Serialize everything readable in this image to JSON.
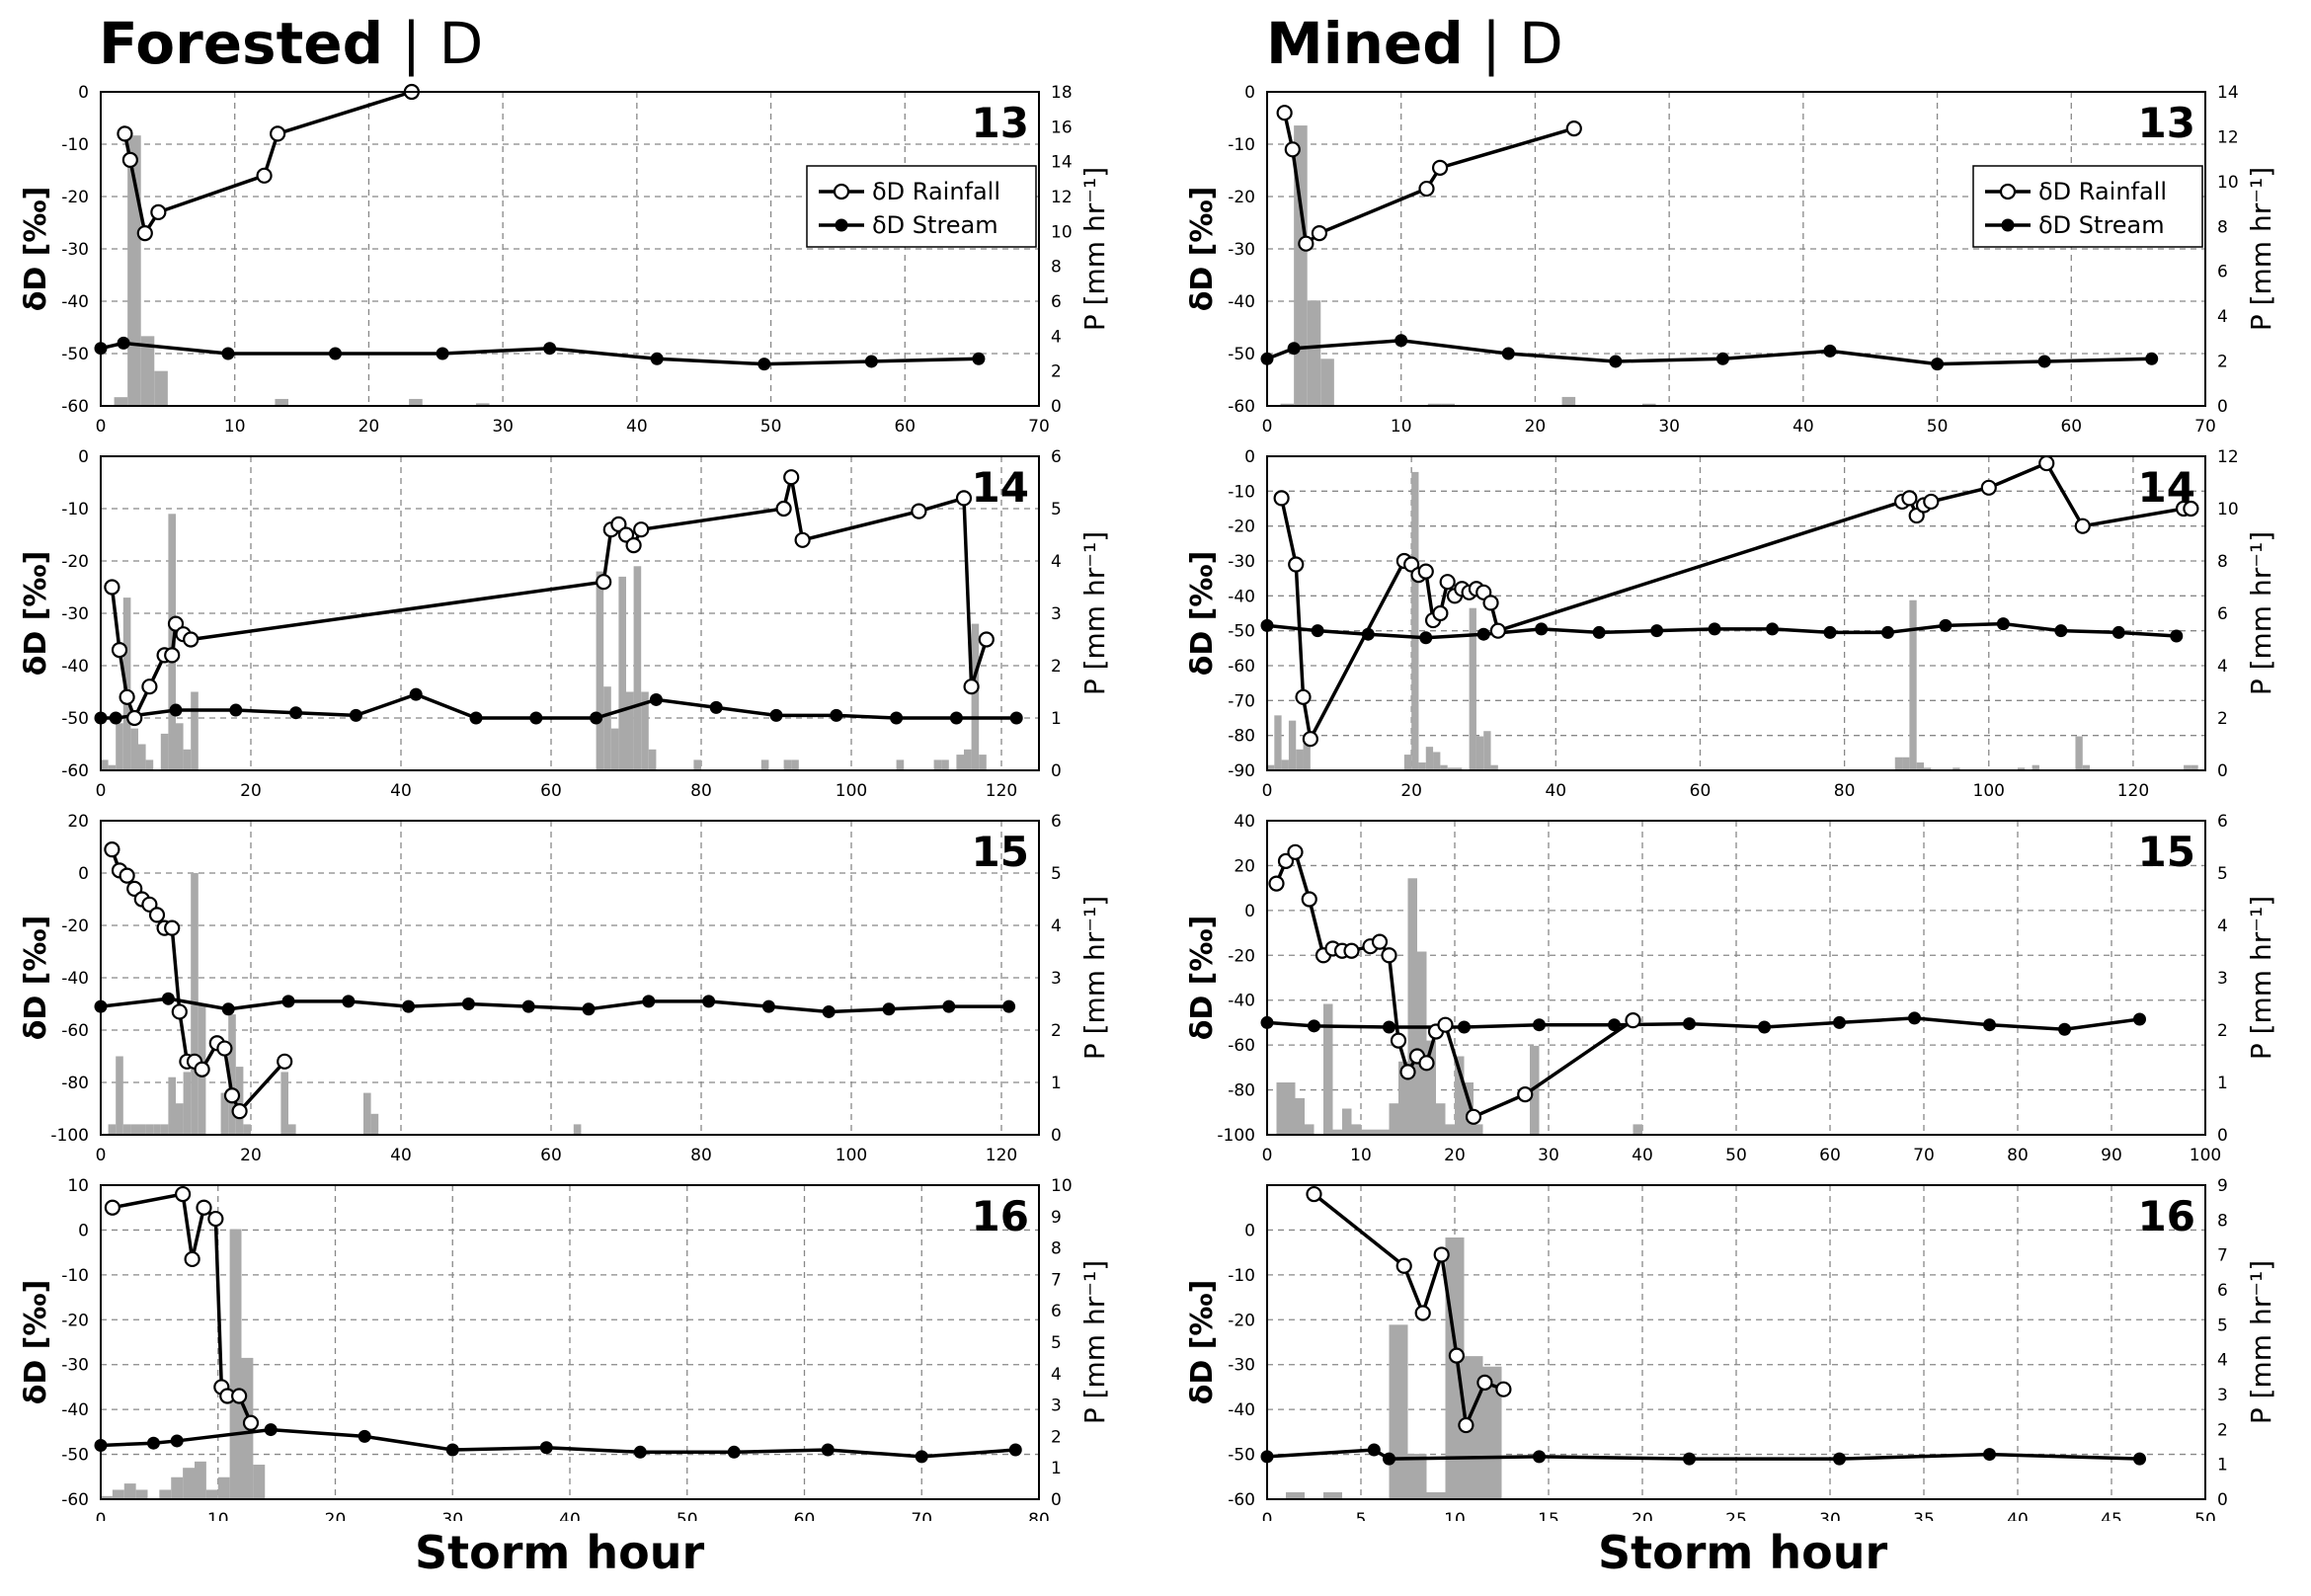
{
  "figure": {
    "columns": [
      {
        "title": "Forested",
        "separator": "|",
        "suffix": "D"
      },
      {
        "title": "Mined",
        "separator": "|",
        "suffix": "D"
      }
    ],
    "xlabel": "Storm hour"
  },
  "colors": {
    "rain_bar": "#a9a9a9",
    "line": "#000000",
    "grid": "#888888",
    "open_marker_fill": "#ffffff"
  },
  "chart_data": [
    {
      "panel": "13",
      "column": "Forested",
      "type": "line+bar",
      "xlim": [
        0,
        70
      ],
      "xticks": [
        0,
        10,
        20,
        30,
        40,
        50,
        60,
        70
      ],
      "ylim": [
        -60,
        0
      ],
      "yticks": [
        -60,
        -50,
        -40,
        -30,
        -20,
        -10,
        0
      ],
      "y2lim": [
        0,
        18
      ],
      "y2ticks": [
        0,
        2,
        4,
        6,
        8,
        10,
        12,
        14,
        16,
        18
      ],
      "ylabel": "δD [‰]",
      "y2label": "P [mm hr⁻¹]",
      "legend": {
        "rainfall": "δD Rainfall",
        "stream": "δD Stream"
      },
      "rainfall_dD": {
        "x": [
          1.8,
          2.2,
          3.3,
          4.3,
          12.2,
          13.2,
          23.2
        ],
        "y": [
          -8,
          -13,
          -27,
          -23,
          -16,
          -8,
          0
        ]
      },
      "stream_dD": {
        "x": [
          0,
          1.7,
          9.5,
          17.5,
          25.5,
          33.5,
          41.5,
          49.5,
          57.5,
          65.5
        ],
        "y": [
          -49,
          -48,
          -50,
          -50,
          -50,
          -49,
          -51,
          -52,
          -51.5,
          -51
        ]
      },
      "precip": {
        "x": [
          1.5,
          2.5,
          3.5,
          4.5,
          13.5,
          23.5,
          28.5
        ],
        "y": [
          0.5,
          15.5,
          4,
          2,
          0.4,
          0.4,
          0.15
        ]
      }
    },
    {
      "panel": "14",
      "column": "Forested",
      "type": "line+bar",
      "xlim": [
        0,
        125
      ],
      "xticks": [
        0,
        20,
        40,
        60,
        80,
        100,
        120
      ],
      "ylim": [
        -60,
        0
      ],
      "yticks": [
        -60,
        -50,
        -40,
        -30,
        -20,
        -10,
        0
      ],
      "y2lim": [
        0,
        6
      ],
      "y2ticks": [
        0,
        1,
        2,
        3,
        4,
        5,
        6
      ],
      "ylabel": "δD [‰]",
      "y2label": "P [mm hr⁻¹]",
      "rainfall_dD": {
        "x": [
          1.5,
          2.5,
          3.5,
          4.5,
          6.5,
          8.5,
          9.5,
          10,
          11,
          12,
          67,
          68,
          69,
          70,
          71,
          72,
          91,
          92,
          93.5,
          109,
          115,
          116,
          118
        ],
        "y": [
          -25,
          -37,
          -46,
          -50,
          -44,
          -38,
          -38,
          -32,
          -34,
          -35,
          -24,
          -14,
          -13,
          -15,
          -17,
          -14,
          -10,
          -4,
          -16,
          -10.5,
          -8,
          -44,
          -35
        ]
      },
      "stream_dD": {
        "x": [
          0,
          2,
          10,
          18,
          26,
          34,
          42,
          50,
          58,
          66,
          74,
          82,
          90,
          98,
          106,
          114,
          122
        ],
        "y": [
          -50,
          -50,
          -48.5,
          -48.5,
          -49,
          -49.5,
          -45.5,
          -50,
          -50,
          -50,
          -46.5,
          -48,
          -49.5,
          -49.5,
          -50,
          -50,
          -50
        ]
      },
      "precip": {
        "x": [
          0.5,
          1.5,
          2.5,
          3.5,
          4.5,
          5.5,
          6.5,
          8.5,
          9.5,
          10.5,
          11.5,
          12.5,
          66.5,
          67.5,
          68.5,
          69.5,
          70.5,
          71.5,
          72.5,
          73.5,
          79.5,
          88.5,
          91.5,
          92.5,
          106.5,
          111.5,
          112.5,
          114.5,
          115.5,
          116.5,
          117.5
        ],
        "y": [
          0.2,
          0.1,
          0.9,
          3.3,
          0.8,
          0.5,
          0.2,
          0.7,
          4.9,
          0.9,
          0.4,
          1.5,
          3.8,
          1.6,
          0.8,
          3.7,
          1.5,
          3.9,
          1.5,
          0.4,
          0.2,
          0.2,
          0.2,
          0.2,
          0.2,
          0.2,
          0.2,
          0.3,
          0.4,
          2.8,
          0.3
        ]
      }
    },
    {
      "panel": "15",
      "column": "Forested",
      "type": "line+bar",
      "xlim": [
        0,
        125
      ],
      "xticks": [
        0,
        20,
        40,
        60,
        80,
        100,
        120
      ],
      "ylim": [
        -100,
        20
      ],
      "yticks": [
        -100,
        -80,
        -60,
        -40,
        -20,
        0,
        20
      ],
      "y2lim": [
        0,
        6
      ],
      "y2ticks": [
        0,
        1,
        2,
        3,
        4,
        5,
        6
      ],
      "ylabel": "δD [‰]",
      "y2label": "P [mm hr⁻¹]",
      "rainfall_dD": {
        "x": [
          1.5,
          2.5,
          3.5,
          4.5,
          5.5,
          6.5,
          7.5,
          8.5,
          9.5,
          10.5,
          11.5,
          12.5,
          13.5,
          15.5,
          16.5,
          17.5,
          18.5,
          24.5
        ],
        "y": [
          9,
          1,
          -1,
          -6,
          -10,
          -12,
          -16,
          -21,
          -21,
          -53,
          -72,
          -72,
          -75,
          -65,
          -67,
          -85,
          -91,
          -72
        ]
      },
      "stream_dD": {
        "x": [
          0,
          9,
          17,
          25,
          33,
          41,
          49,
          57,
          65,
          73,
          81,
          89,
          97,
          105,
          113,
          121
        ],
        "y": [
          -51,
          -48,
          -52,
          -49,
          -49,
          -51,
          -50,
          -51,
          -52,
          -49,
          -49,
          -51,
          -53,
          -52,
          -51,
          -51
        ]
      },
      "precip": {
        "x": [
          1.5,
          2.5,
          3.5,
          4.5,
          5.5,
          6.5,
          7.5,
          8.5,
          9.5,
          10.5,
          11.5,
          12.5,
          13.5,
          16.5,
          17.5,
          18.5,
          19.5,
          24.5,
          25.5,
          35.5,
          36.5,
          63.5
        ],
        "y": [
          0.2,
          1.5,
          0.2,
          0.2,
          0.2,
          0.2,
          0.2,
          0.2,
          1.1,
          0.6,
          1.2,
          5.0,
          2.5,
          0.8,
          2.3,
          1.3,
          0.2,
          1.2,
          0.2,
          0.8,
          0.4,
          0.2
        ]
      }
    },
    {
      "panel": "16",
      "column": "Forested",
      "type": "line+bar",
      "xlim": [
        0,
        80
      ],
      "xticks": [
        0,
        10,
        20,
        30,
        40,
        50,
        60,
        70,
        80
      ],
      "ylim": [
        -60,
        10
      ],
      "yticks": [
        -60,
        -50,
        -40,
        -30,
        -20,
        -10,
        0,
        10
      ],
      "y2lim": [
        0,
        10
      ],
      "y2ticks": [
        0,
        1,
        2,
        3,
        4,
        5,
        6,
        7,
        8,
        9,
        10
      ],
      "ylabel": "δD [‰]",
      "y2label": "P [mm hr⁻¹]",
      "rainfall_dD": {
        "x": [
          1,
          7,
          7.8,
          8.8,
          9.8,
          10.3,
          10.8,
          11.8,
          12.8
        ],
        "y": [
          5,
          8,
          -6.5,
          5,
          2.5,
          -35,
          -37,
          -37,
          -43
        ]
      },
      "stream_dD": {
        "x": [
          0,
          4.5,
          6.5,
          14.5,
          22.5,
          30,
          38,
          46,
          54,
          62,
          70,
          78
        ],
        "y": [
          -48,
          -47.5,
          -47,
          -44.5,
          -46,
          -49,
          -48.5,
          -49.5,
          -49.5,
          -49,
          -50.5,
          -49
        ]
      },
      "precip": {
        "x": [
          0.5,
          1.5,
          2.5,
          3.5,
          5.5,
          6.5,
          7.5,
          8.5,
          9.5,
          10.5,
          11.5,
          12.5,
          13.5
        ],
        "y": [
          0.1,
          0.3,
          0.5,
          0.3,
          0.3,
          0.7,
          1.0,
          1.2,
          0.3,
          0.7,
          8.6,
          4.5,
          1.1
        ]
      }
    },
    {
      "panel": "13",
      "column": "Mined",
      "type": "line+bar",
      "xlim": [
        0,
        70
      ],
      "xticks": [
        0,
        10,
        20,
        30,
        40,
        50,
        60,
        70
      ],
      "ylim": [
        -60,
        0
      ],
      "yticks": [
        -60,
        -50,
        -40,
        -30,
        -20,
        -10,
        0
      ],
      "y2lim": [
        0,
        14
      ],
      "y2ticks": [
        0,
        2,
        4,
        6,
        8,
        10,
        12,
        14
      ],
      "ylabel": "δD [‰]",
      "y2label": "P [mm hr⁻¹]",
      "legend": {
        "rainfall": "δD Rainfall",
        "stream": "δD Stream"
      },
      "rainfall_dD": {
        "x": [
          1.3,
          1.9,
          2.9,
          3.9,
          11.9,
          12.9,
          22.9
        ],
        "y": [
          -4,
          -11,
          -29,
          -27,
          -18.5,
          -14.5,
          -7
        ]
      },
      "stream_dD": {
        "x": [
          0,
          2,
          10,
          18,
          26,
          34,
          42,
          50,
          58,
          66
        ],
        "y": [
          -51,
          -49,
          -47.5,
          -50,
          -51.5,
          -51,
          -49.5,
          -52,
          -51.5,
          -51
        ]
      },
      "precip": {
        "x": [
          1.5,
          2.5,
          3.5,
          4.5,
          12.5,
          13.5,
          22.5,
          28.5
        ],
        "y": [
          0.1,
          12.5,
          4.7,
          2.1,
          0.1,
          0.1,
          0.4,
          0.1
        ]
      }
    },
    {
      "panel": "14",
      "column": "Mined",
      "type": "line+bar",
      "xlim": [
        0,
        130
      ],
      "xticks": [
        0,
        20,
        40,
        60,
        80,
        100,
        120
      ],
      "ylim": [
        -90,
        0
      ],
      "yticks": [
        -90,
        -80,
        -70,
        -60,
        -50,
        -40,
        -30,
        -20,
        -10,
        0
      ],
      "y2lim": [
        0,
        12
      ],
      "y2ticks": [
        0,
        2,
        4,
        6,
        8,
        10,
        12
      ],
      "ylabel": "δD [‰]",
      "y2label": "P [mm hr⁻¹]",
      "rainfall_dD": {
        "x": [
          2,
          4,
          5,
          6,
          19,
          20,
          21,
          22,
          23,
          24,
          25,
          26,
          27,
          28,
          29,
          30,
          31,
          32,
          88,
          89,
          90,
          91,
          92,
          100,
          108,
          113,
          127,
          128
        ],
        "y": [
          -12,
          -31,
          -69,
          -81,
          -30,
          -31,
          -34,
          -33,
          -47,
          -45,
          -36,
          -40,
          -38,
          -39,
          -38,
          -39,
          -42,
          -50,
          -13,
          -12,
          -17,
          -14,
          -13,
          -9,
          -2,
          -20,
          -15,
          -15
        ]
      },
      "stream_dD": {
        "x": [
          0,
          7,
          14,
          22,
          30,
          38,
          46,
          54,
          62,
          70,
          78,
          86,
          94,
          102,
          110,
          118,
          126
        ],
        "y": [
          -48.5,
          -50,
          -51,
          -52,
          -51,
          -49.5,
          -50.5,
          -50,
          -49.5,
          -49.5,
          -50.5,
          -50.5,
          -48.5,
          -48,
          -50,
          -50.5,
          -51.5
        ]
      },
      "precip": {
        "x": [
          0.5,
          1.5,
          2.5,
          3.5,
          4.5,
          5.5,
          19.5,
          20.5,
          21.5,
          22.5,
          23.5,
          24.5,
          25.5,
          26.5,
          28.5,
          29.5,
          30.5,
          31.5,
          87.5,
          88.5,
          89.5,
          90.5,
          91.5,
          95.5,
          104.5,
          106.5,
          112.5,
          113.5,
          127.5,
          128.5
        ],
        "y": [
          0.2,
          2.1,
          0.4,
          1.9,
          0.8,
          1.2,
          0.6,
          11.4,
          0.3,
          0.9,
          0.7,
          0.2,
          0.1,
          0.1,
          6.2,
          1.3,
          1.5,
          0.2,
          0.5,
          0.5,
          6.5,
          0.3,
          0.1,
          0.1,
          0.1,
          0.2,
          1.3,
          0.2,
          0.2,
          0.2
        ]
      }
    },
    {
      "panel": "15",
      "column": "Mined",
      "type": "line+bar",
      "xlim": [
        0,
        100
      ],
      "xticks": [
        0,
        10,
        20,
        30,
        40,
        50,
        60,
        70,
        80,
        90,
        100
      ],
      "ylim": [
        -100,
        40
      ],
      "yticks": [
        -100,
        -80,
        -60,
        -40,
        -20,
        0,
        20,
        40
      ],
      "y2lim": [
        0,
        6
      ],
      "y2ticks": [
        0,
        1,
        2,
        3,
        4,
        5,
        6
      ],
      "ylabel": "δD [‰]",
      "y2label": "P [mm hr⁻¹]",
      "rainfall_dD": {
        "x": [
          1,
          2,
          3,
          4.5,
          6,
          7,
          8,
          9,
          11,
          12,
          13,
          14,
          15,
          16,
          17,
          18,
          19,
          22,
          27.5,
          39
        ],
        "y": [
          12,
          22,
          26,
          5,
          -20,
          -17,
          -18,
          -18,
          -16,
          -14,
          -20,
          -58,
          -72,
          -65,
          -68,
          -54,
          -51,
          -92,
          -82,
          -49
        ]
      },
      "stream_dD": {
        "x": [
          0,
          5,
          13,
          21,
          29,
          37,
          45,
          53,
          61,
          69,
          77,
          85,
          93
        ],
        "y": [
          -50,
          -51.5,
          -52,
          -52,
          -51,
          -51,
          -50.5,
          -52,
          -50,
          -48,
          -51,
          -53,
          -48.5
        ]
      },
      "precip": {
        "x": [
          1.5,
          2.5,
          3.5,
          4.5,
          6.5,
          7.5,
          8.5,
          9.5,
          10.5,
          11.5,
          12.5,
          13.5,
          14.5,
          15.5,
          16.5,
          17.5,
          18.5,
          19.5,
          20.5,
          21.5,
          22.5,
          28.5,
          39.5
        ],
        "y": [
          1.0,
          1.0,
          0.7,
          0.2,
          2.5,
          0.1,
          0.5,
          0.2,
          0.1,
          0.1,
          0.1,
          0.6,
          1.4,
          4.9,
          3.5,
          1.8,
          0.6,
          0.2,
          1.5,
          1.0,
          0.2,
          1.7,
          0.2
        ]
      }
    },
    {
      "panel": "16",
      "column": "Mined",
      "type": "line+bar",
      "xlim": [
        0,
        50
      ],
      "xticks": [
        0,
        5,
        10,
        15,
        20,
        25,
        30,
        35,
        40,
        45,
        50
      ],
      "ylim": [
        -60,
        10
      ],
      "yticks": [
        -60,
        -50,
        -40,
        -30,
        -20,
        -10,
        0
      ],
      "y2lim": [
        0,
        9
      ],
      "y2ticks": [
        0,
        1,
        2,
        3,
        4,
        5,
        6,
        7,
        8,
        9
      ],
      "ylabel": "δD [‰]",
      "y2label": "P [mm hr⁻¹]",
      "rainfall_dD": {
        "x": [
          2.5,
          7.3,
          8.3,
          9.3,
          10.1,
          10.6,
          11.6,
          12.6
        ],
        "y": [
          8,
          -8,
          -18.5,
          -5.5,
          -28,
          -43.5,
          -34,
          -35.5
        ]
      },
      "stream_dD": {
        "x": [
          0,
          5.7,
          6.5,
          14.5,
          22.5,
          30.5,
          38.5,
          46.5
        ],
        "y": [
          -50.5,
          -49,
          -51,
          -50.5,
          -51,
          -51,
          -50,
          -51
        ]
      },
      "precip": {
        "x": [
          1.5,
          3.5,
          7.0,
          8.0,
          9.0,
          10.0,
          11.0,
          12.0
        ],
        "y": [
          0.2,
          0.2,
          5.0,
          1.3,
          0.2,
          7.5,
          4.1,
          3.8
        ]
      }
    }
  ]
}
